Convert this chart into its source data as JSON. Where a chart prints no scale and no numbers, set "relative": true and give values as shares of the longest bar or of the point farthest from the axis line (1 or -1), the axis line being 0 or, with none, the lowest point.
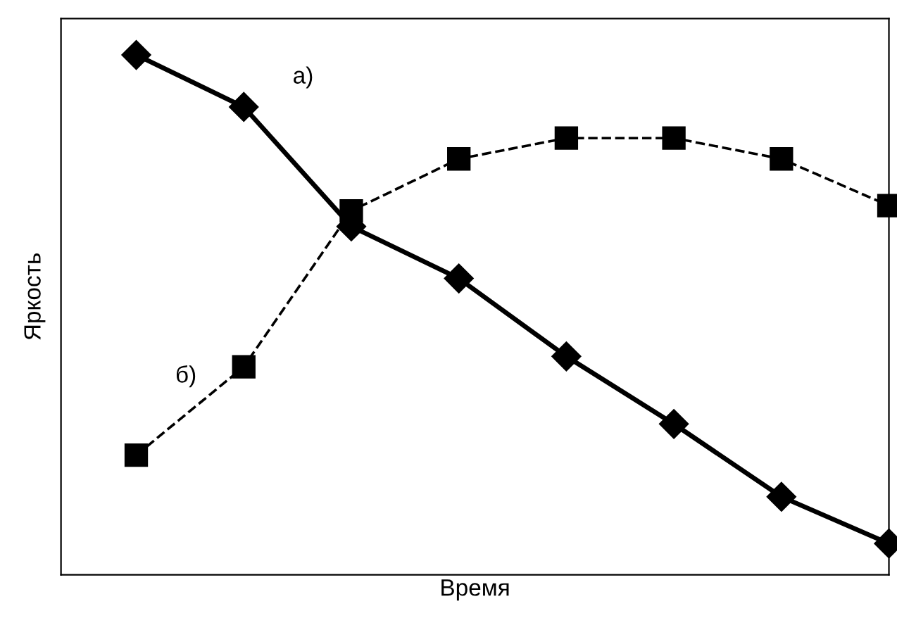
{
  "chart_data": {
    "type": "line",
    "relative": true,
    "xlabel": "Время",
    "ylabel": "Яркость",
    "tick_labels": false,
    "grid": false,
    "legend": false,
    "categories": [
      null,
      null,
      null,
      null,
      null,
      null,
      null,
      null
    ],
    "series": [
      {
        "name": "а)",
        "color": "#000000",
        "marker": "diamond",
        "line_style": "solid",
        "values": [
          1,
          0.9,
          0.67,
          0.57,
          0.42,
          0.29,
          0.15,
          0.06
        ]
      },
      {
        "name": "б)",
        "color": "#000000",
        "marker": "square",
        "line_style": "dashed",
        "values": [
          0.23,
          0.4,
          0.7,
          0.8,
          0.84,
          0.84,
          0.8,
          0.71
        ]
      }
    ]
  }
}
